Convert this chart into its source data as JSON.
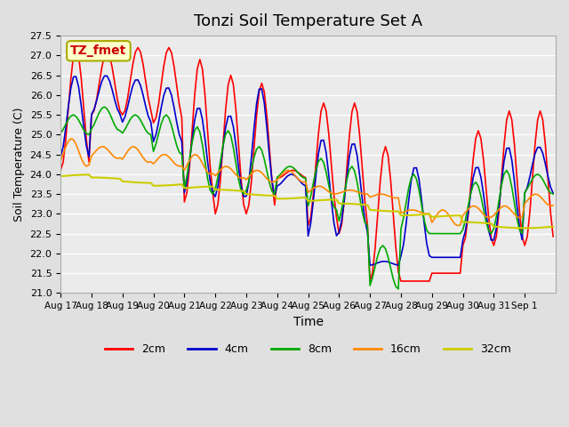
{
  "title": "Tonzi Soil Temperature Set A",
  "xlabel": "Time",
  "ylabel": "Soil Temperature (C)",
  "annotation": "TZ_fmet",
  "ylim": [
    21.0,
    27.5
  ],
  "yticks": [
    21.0,
    21.5,
    22.0,
    22.5,
    23.0,
    23.5,
    24.0,
    24.5,
    25.0,
    25.5,
    26.0,
    26.5,
    27.0,
    27.5
  ],
  "xtick_labels": [
    "Aug 17",
    "Aug 18",
    "Aug 19",
    "Aug 20",
    "Aug 21",
    "Aug 22",
    "Aug 23",
    "Aug 24",
    "Aug 25",
    "Aug 26",
    "Aug 27",
    "Aug 28",
    "Aug 29",
    "Aug 30",
    "Aug 31",
    "Sep 1"
  ],
  "series_labels": [
    "2cm",
    "4cm",
    "8cm",
    "16cm",
    "32cm"
  ],
  "series_colors": [
    "#ff0000",
    "#0000cc",
    "#00aa00",
    "#ff8800",
    "#cccc00"
  ],
  "background_color": "#e0e0e0",
  "plot_background": "#ebebeb",
  "grid_color": "#ffffff",
  "n_days": 16,
  "n_per_day": 12,
  "y2cm_peaks": [
    27.2,
    27.1,
    27.2,
    27.2,
    26.9,
    26.5,
    26.3,
    24.1,
    25.8,
    25.8,
    24.7,
    21.3,
    21.5,
    25.1,
    25.6,
    25.6
  ],
  "y2cm_mins": [
    24.1,
    25.5,
    25.5,
    25.3,
    23.3,
    23.0,
    23.0,
    23.9,
    22.7,
    22.5,
    21.3,
    21.3,
    21.5,
    22.2,
    22.2,
    22.2
  ],
  "y4cm_peaks": [
    26.5,
    26.5,
    26.4,
    26.2,
    25.7,
    25.5,
    26.2,
    24.0,
    24.9,
    24.8,
    21.8,
    24.2,
    21.9,
    24.2,
    24.7,
    24.7
  ],
  "y4cm_mins": [
    24.4,
    25.5,
    25.3,
    24.8,
    23.5,
    23.4,
    23.4,
    23.7,
    22.4,
    22.5,
    21.7,
    21.9,
    21.9,
    22.3,
    22.3,
    23.5
  ],
  "y8cm_peaks": [
    25.5,
    25.7,
    25.5,
    25.5,
    25.2,
    25.1,
    24.7,
    24.2,
    24.4,
    24.2,
    22.2,
    24.0,
    22.5,
    23.8,
    24.1,
    24.0
  ],
  "y8cm_mins": [
    25.0,
    25.1,
    25.0,
    24.5,
    23.5,
    23.5,
    23.5,
    23.9,
    23.1,
    22.7,
    21.1,
    22.5,
    22.5,
    22.5,
    22.5,
    23.5
  ],
  "y16cm_peaks": [
    24.9,
    24.7,
    24.7,
    24.5,
    24.5,
    24.2,
    24.1,
    24.1,
    23.7,
    23.6,
    23.5,
    23.1,
    23.1,
    23.2,
    23.2,
    23.5
  ],
  "y16cm_mins": [
    24.2,
    24.4,
    24.3,
    24.2,
    24.0,
    23.9,
    23.8,
    23.8,
    23.5,
    23.5,
    23.4,
    23.0,
    22.7,
    22.9,
    22.9,
    23.2
  ],
  "y32cm_vals": [
    23.95,
    23.88,
    23.82,
    23.75,
    23.65,
    23.57,
    23.5,
    23.42,
    23.32,
    23.22,
    23.1,
    23.0,
    22.92,
    22.75,
    22.68,
    22.68
  ]
}
